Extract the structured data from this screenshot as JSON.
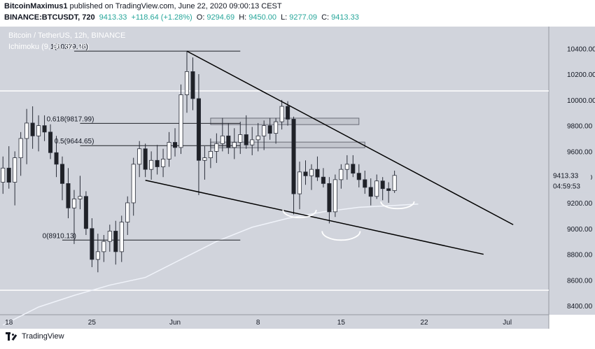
{
  "header": {
    "author": "BitcoinMaximus1",
    "published": "published on TradingView.com, June 22, 2020 09:00:13 CEST",
    "symbol": "BINANCE:BTCUSDT, 720",
    "price": "9413.33",
    "change": "+118.64 (+1.28%)",
    "o_label": "O:",
    "o_value": "9294.69",
    "h_label": "H:",
    "h_value": "9450.00",
    "l_label": "L:",
    "l_value": "9277.09",
    "c_label": "C:",
    "c_value": "9413.33"
  },
  "footer": {
    "brand": "TradingView"
  },
  "colors": {
    "background": "#d1d4dc",
    "candle_outline": "#2a2e39",
    "up_fill": "#ffffff",
    "down_fill": "#1f2127",
    "ma_line": "#f0f3fa",
    "accent_green": "#26a69a"
  },
  "chart_data": {
    "type": "candlestick",
    "title": "Bitcoin / TetherUS, 12h, BINANCE",
    "indicator": "Ichimoku (9, 26, 52, 26)",
    "ylim": [
      8330,
      10570
    ],
    "y_ticks": [
      "10400.00",
      "10200.00",
      "10000.00",
      "9800.00",
      "9600.00",
      "9400.00",
      "9200.00",
      "9000.00",
      "8800.00",
      "8600.00",
      "8400.00"
    ],
    "x_ticks": [
      {
        "label": "18",
        "idx": 1
      },
      {
        "label": "25",
        "idx": 15
      },
      {
        "label": "Jun",
        "idx": 29
      },
      {
        "label": "8",
        "idx": 43
      },
      {
        "label": "15",
        "idx": 57
      },
      {
        "label": "22",
        "idx": 71
      },
      {
        "label": "Jul",
        "idx": 85
      }
    ],
    "x_range": [
      -0.5,
      92
    ],
    "last_price": "9413.33",
    "countdown": "04:59:53",
    "candles": [
      [
        9360,
        9560,
        9270,
        9470
      ],
      [
        9470,
        9640,
        9310,
        9360
      ],
      [
        9360,
        9600,
        9180,
        9550
      ],
      [
        9550,
        9750,
        9410,
        9700
      ],
      [
        9700,
        9930,
        9500,
        9820
      ],
      [
        9820,
        9950,
        9620,
        9720
      ],
      [
        9720,
        9880,
        9600,
        9800
      ],
      [
        9800,
        9880,
        9680,
        9750
      ],
      [
        9750,
        9810,
        9540,
        9590
      ],
      [
        9590,
        9720,
        9400,
        9500
      ],
      [
        9500,
        9560,
        9220,
        9350
      ],
      [
        9350,
        9470,
        9080,
        9160
      ],
      [
        9160,
        9300,
        8880,
        9230
      ],
      [
        9230,
        9410,
        9150,
        9250
      ],
      [
        9250,
        9290,
        8950,
        9000
      ],
      [
        9000,
        9080,
        8700,
        8760
      ],
      [
        8760,
        8960,
        8660,
        8820
      ],
      [
        8820,
        8950,
        8740,
        8900
      ],
      [
        8900,
        9030,
        8820,
        8980
      ],
      [
        8980,
        9060,
        8720,
        8820
      ],
      [
        8820,
        9100,
        8740,
        9050
      ],
      [
        9050,
        9250,
        8950,
        9200
      ],
      [
        9200,
        9550,
        9100,
        9500
      ],
      [
        9500,
        9680,
        9400,
        9620
      ],
      [
        9620,
        9660,
        9400,
        9460
      ],
      [
        9460,
        9600,
        9380,
        9530
      ],
      [
        9530,
        9650,
        9420,
        9480
      ],
      [
        9480,
        9620,
        9400,
        9540
      ],
      [
        9540,
        9750,
        9480,
        9670
      ],
      [
        9670,
        9780,
        9560,
        9630
      ],
      [
        9630,
        10120,
        9580,
        10040
      ],
      [
        10040,
        10380,
        9900,
        10220
      ],
      [
        10220,
        10330,
        9920,
        10010
      ],
      [
        10010,
        10200,
        9260,
        9530
      ],
      [
        9530,
        9640,
        9380,
        9550
      ],
      [
        9550,
        9700,
        9470,
        9600
      ],
      [
        9600,
        9740,
        9510,
        9660
      ],
      [
        9660,
        9860,
        9600,
        9720
      ],
      [
        9720,
        9820,
        9580,
        9630
      ],
      [
        9630,
        9780,
        9540,
        9670
      ],
      [
        9670,
        9830,
        9580,
        9730
      ],
      [
        9730,
        9880,
        9620,
        9650
      ],
      [
        9650,
        9790,
        9570,
        9690
      ],
      [
        9690,
        9820,
        9600,
        9720
      ],
      [
        9720,
        9840,
        9610,
        9800
      ],
      [
        9800,
        9860,
        9690,
        9740
      ],
      [
        9740,
        9860,
        9660,
        9830
      ],
      [
        9830,
        10000,
        9770,
        9950
      ],
      [
        9950,
        9990,
        9800,
        9850
      ],
      [
        9850,
        9870,
        9110,
        9270
      ],
      [
        9270,
        9520,
        9150,
        9440
      ],
      [
        9440,
        9530,
        9340,
        9410
      ],
      [
        9410,
        9500,
        9300,
        9460
      ],
      [
        9460,
        9560,
        9370,
        9400
      ],
      [
        9400,
        9470,
        9320,
        9350
      ],
      [
        9350,
        9400,
        9040,
        9130
      ],
      [
        9130,
        9420,
        9090,
        9380
      ],
      [
        9380,
        9500,
        9310,
        9460
      ],
      [
        9460,
        9570,
        9380,
        9500
      ],
      [
        9500,
        9570,
        9400,
        9430
      ],
      [
        9430,
        9500,
        9320,
        9380
      ],
      [
        9380,
        9450,
        9270,
        9320
      ],
      [
        9320,
        9390,
        9180,
        9250
      ],
      [
        9250,
        9420,
        9230,
        9370
      ],
      [
        9370,
        9400,
        9220,
        9310
      ],
      [
        9310,
        9360,
        9200,
        9295
      ],
      [
        9295,
        9450,
        9277,
        9413
      ]
    ],
    "ma_line": [
      [
        0,
        8250
      ],
      [
        6,
        8390
      ],
      [
        12,
        8480
      ],
      [
        18,
        8560
      ],
      [
        24,
        8620
      ],
      [
        30,
        8760
      ],
      [
        36,
        8900
      ],
      [
        42,
        9010
      ],
      [
        48,
        9080
      ],
      [
        54,
        9130
      ],
      [
        60,
        9165
      ],
      [
        66,
        9180
      ],
      [
        70,
        9190
      ]
    ],
    "horizontal_lines": [
      {
        "label": "1(10379.16)",
        "value": 10379.16,
        "x0": 12,
        "x1": 40
      },
      {
        "label": "0.618(9817.99)",
        "value": 9817.99,
        "x0": 13,
        "x1": 40
      },
      {
        "label": "0.5(9644.65)",
        "value": 9644.65,
        "x0": 13,
        "x1": 40
      },
      {
        "label": "0(8910.13)",
        "value": 8910.13,
        "x0": 10,
        "x1": 40
      }
    ],
    "white_levels": [
      10070,
      8520
    ],
    "zones": [
      {
        "name": "resistance-zone-upper",
        "x0": 35,
        "x1": 60,
        "y_low": 9808,
        "y_high": 9858
      },
      {
        "name": "resistance-zone-lower",
        "x0": 35,
        "x1": 61,
        "y_low": 9628,
        "y_high": 9672
      }
    ],
    "trendlines": [
      {
        "name": "wedge-upper-line",
        "x0": 31,
        "y0": 10379,
        "x1": 86,
        "y1": 9030
      },
      {
        "name": "wedge-lower-line",
        "x0": 24,
        "y0": 9375,
        "x1": 81,
        "y1": 8800
      }
    ],
    "arcs": [
      {
        "name": "support-arc-1",
        "cx": 50,
        "cy": 9145,
        "rx": 2.8,
        "ry": 60
      },
      {
        "name": "support-arc-2",
        "cx": 57,
        "cy": 8980,
        "rx": 3.2,
        "ry": 70
      },
      {
        "name": "support-arc-3",
        "cx": 66.5,
        "cy": 9210,
        "rx": 2.8,
        "ry": 55
      }
    ]
  }
}
